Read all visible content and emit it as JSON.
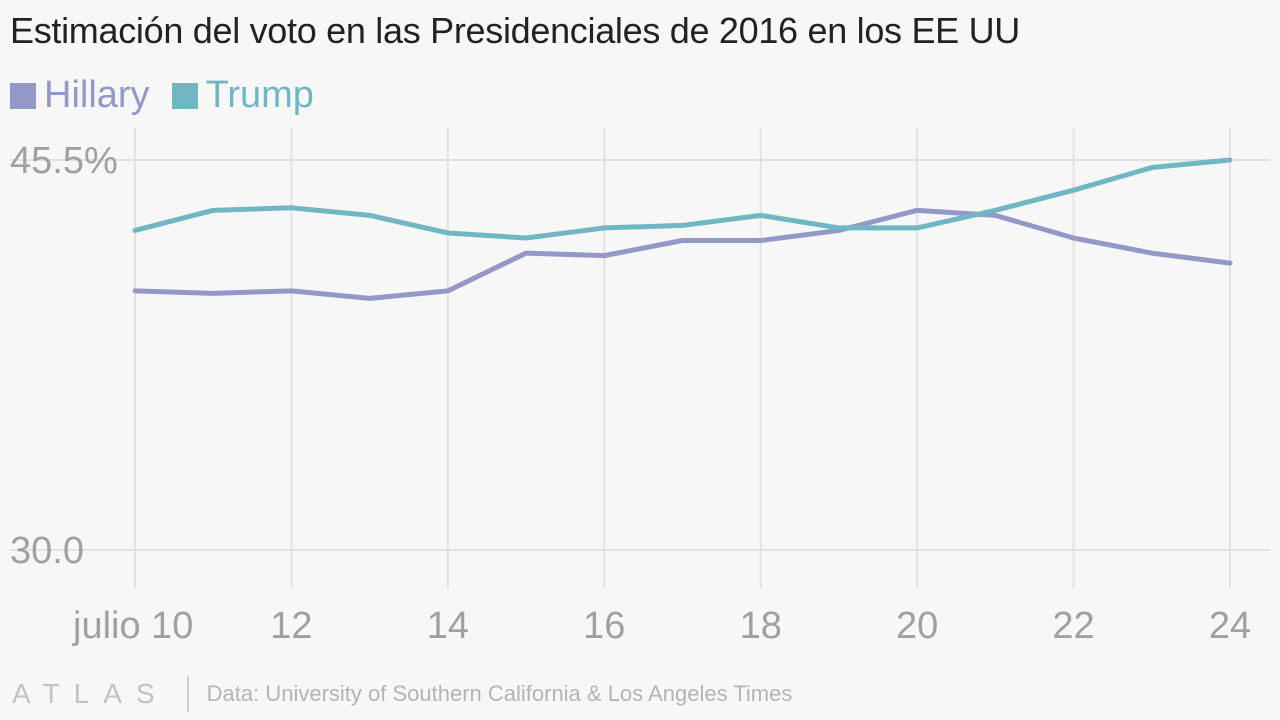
{
  "header": {
    "title": "Estimación del voto en las Presidenciales de 2016 en los EE UU"
  },
  "colors": {
    "hillary": "#9398c8",
    "trump": "#70b7c3",
    "grid": "#e2e2e2",
    "tick": "#a0a0a0",
    "background": "#f7f7f7"
  },
  "chart_data": {
    "type": "line",
    "title": "Estimación del voto en las Presidenciales de 2016 en los EE UU",
    "x": [
      10,
      11,
      12,
      13,
      14,
      15,
      16,
      17,
      18,
      19,
      20,
      21,
      22,
      23,
      24
    ],
    "x_ticks": [
      10,
      12,
      14,
      16,
      18,
      20,
      22,
      24
    ],
    "x_tick_labels": [
      "julio 10",
      "12",
      "14",
      "16",
      "18",
      "20",
      "22",
      "24"
    ],
    "xlim": [
      10,
      24
    ],
    "ylim": [
      30,
      45.5
    ],
    "y_ticks": [
      30,
      45.5
    ],
    "y_tick_labels": [
      "30.0",
      "45.5%"
    ],
    "grid": true,
    "legend_position": "top-left",
    "series": [
      {
        "name": "Hillary",
        "color": "#9398c8",
        "values": [
          40.3,
          40.2,
          40.3,
          40.0,
          40.3,
          41.8,
          41.7,
          42.3,
          42.3,
          42.7,
          43.5,
          43.3,
          42.4,
          41.8,
          41.4
        ]
      },
      {
        "name": "Trump",
        "color": "#70b7c3",
        "values": [
          42.7,
          43.5,
          43.6,
          43.3,
          42.6,
          42.4,
          42.8,
          42.9,
          43.3,
          42.8,
          42.8,
          43.5,
          44.3,
          45.2,
          45.5
        ]
      }
    ]
  },
  "footer": {
    "brand": "ATLAS",
    "source": "Data: University of Southern California & Los Angeles Times"
  }
}
